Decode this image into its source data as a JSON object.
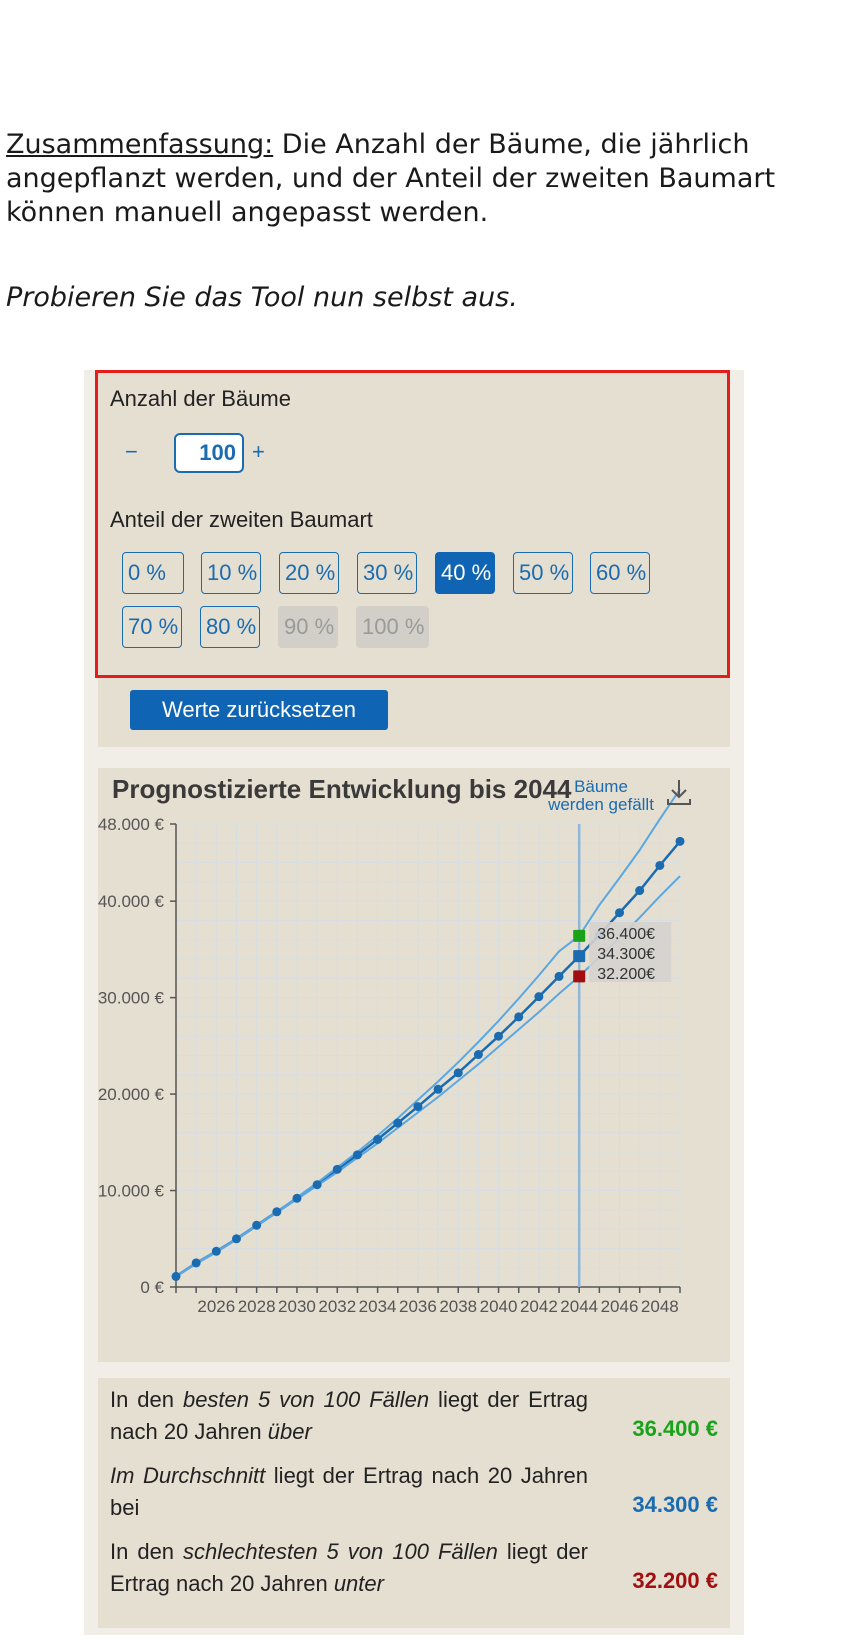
{
  "intro": {
    "summary_label": "Zusammenfassung:",
    "summary_text": " Die Anzahl der Bäume, die jährlich angepflanzt werden, und der Anteil der zweiten Baumart können manuell angepasst werden.",
    "prompt": "Probieren Sie das Tool nun selbst aus."
  },
  "controls": {
    "trees_label": "Anzahl der Bäume",
    "minus": "−",
    "plus": "+",
    "trees_value": "100",
    "share_label": "Anteil der zweiten Baumart",
    "share_options": [
      {
        "label": "0 %",
        "state": "normal"
      },
      {
        "label": "10 %",
        "state": "normal"
      },
      {
        "label": "20 %",
        "state": "normal"
      },
      {
        "label": "30 %",
        "state": "normal"
      },
      {
        "label": "40 %",
        "state": "active"
      },
      {
        "label": "50 %",
        "state": "normal"
      },
      {
        "label": "60 %",
        "state": "normal"
      },
      {
        "label": "70 %",
        "state": "normal"
      },
      {
        "label": "80 %",
        "state": "normal"
      },
      {
        "label": "90 %",
        "state": "disabled"
      },
      {
        "label": "100 %",
        "state": "disabled"
      }
    ],
    "reset_label": "Werte zurücksetzen"
  },
  "chart": {
    "title": "Prognostizierte Entwicklung bis 2044",
    "felled_button": "Bäume werden gefällt",
    "download_icon": "download-icon"
  },
  "chart_data": {
    "type": "line",
    "x_range": [
      2024,
      2049
    ],
    "ylim": [
      0,
      48000
    ],
    "y_ticks": [
      "0 €",
      "10.000 €",
      "20.000 €",
      "30.000 €",
      "40.000 €",
      "48.000 €"
    ],
    "y_tick_values": [
      0,
      10000,
      20000,
      30000,
      40000,
      48000
    ],
    "x_tick_labels": [
      "2026",
      "2028",
      "2030",
      "2032",
      "2034",
      "2036",
      "2038",
      "2040",
      "2042",
      "2044",
      "2046",
      "2048"
    ],
    "x_tick_values": [
      2026,
      2028,
      2030,
      2032,
      2034,
      2036,
      2038,
      2040,
      2042,
      2044,
      2046,
      2048
    ],
    "grid": true,
    "marker_year": 2044,
    "x": [
      2024,
      2025,
      2026,
      2027,
      2028,
      2029,
      2030,
      2031,
      2032,
      2033,
      2034,
      2035,
      2036,
      2037,
      2038,
      2039,
      2040,
      2041,
      2042,
      2043,
      2044,
      2045,
      2046,
      2047,
      2048,
      2049
    ],
    "series": [
      {
        "role": "mean",
        "color": "#1a6bb0",
        "values": [
          1100,
          2500,
          3700,
          5000,
          6400,
          7800,
          9200,
          10600,
          12200,
          13700,
          15300,
          17000,
          18700,
          20500,
          22200,
          24100,
          26000,
          28000,
          30100,
          32200,
          34300,
          36500,
          38800,
          41100,
          43700,
          46200
        ]
      },
      {
        "role": "best",
        "color": "#5ba7e0",
        "values": [
          1100,
          2500,
          3700,
          5000,
          6400,
          7800,
          9300,
          10800,
          12400,
          14000,
          15700,
          17500,
          19400,
          21300,
          23300,
          25400,
          27600,
          29900,
          32300,
          34800,
          36400,
          39600,
          42400,
          45300,
          48500,
          51600
        ]
      },
      {
        "role": "worst",
        "color": "#5ba7e0",
        "values": [
          1100,
          2400,
          3600,
          4900,
          6300,
          7700,
          9100,
          10500,
          11900,
          13400,
          14900,
          16500,
          18100,
          19700,
          21400,
          23100,
          24900,
          26700,
          28500,
          30400,
          32200,
          34200,
          36200,
          38300,
          40500,
          42600
        ]
      }
    ],
    "tooltip": {
      "best": {
        "label": "36.400€",
        "color": "#1aa31a"
      },
      "mean": {
        "label": "34.300€",
        "color": "#1a6bb0"
      },
      "worst": {
        "label": "32.200€",
        "color": "#a01010"
      }
    }
  },
  "results": [
    {
      "text": "In den besten 5 von 100 Fällen liegt der Ertrag nach 20 Jahren über",
      "value": "36.400 €",
      "color": "#1aa31a"
    },
    {
      "text": "Im Durchschnitt liegt der Ertrag nach 20 Jahren bei",
      "value": "34.300 €",
      "color": "#1a6bb0"
    },
    {
      "text": "In den schlechtesten 5 von 100 Fällen liegt der Ertrag nach 20 Jahren unter",
      "value": "32.200 €",
      "color": "#a01010"
    }
  ]
}
